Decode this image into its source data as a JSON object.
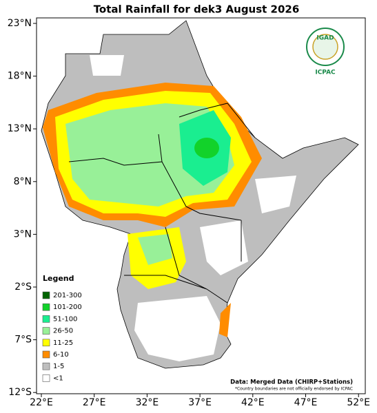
{
  "map": {
    "title": "Total Rainfall for dek3 August 2026",
    "lat_labels": [
      "23°N",
      "18°N",
      "13°N",
      "8°N",
      "3°N",
      "2°S",
      "7°S",
      "12°S"
    ],
    "lon_labels": [
      "22°E",
      "27°E",
      "32°E",
      "37°E",
      "42°E",
      "47°E",
      "52°E"
    ],
    "legend": {
      "title": "Legend",
      "items": [
        {
          "label": "201-300",
          "color": "#006400"
        },
        {
          "label": "101-200",
          "color": "#12d22a"
        },
        {
          "label": "51-100",
          "color": "#1aee90"
        },
        {
          "label": "26-50",
          "color": "#98f098"
        },
        {
          "label": "11-25",
          "color": "#ffff00"
        },
        {
          "label": "6-10",
          "color": "#ff8c00"
        },
        {
          "label": "1-5",
          "color": "#bebebe"
        },
        {
          "label": "<1",
          "color": "#ffffff"
        }
      ]
    },
    "logo": {
      "top": "IGAD",
      "bottom": "ICPAC"
    },
    "credit": "Data: Merged Data (CHIRP+Stations)",
    "disclaimer": "*Country boundaries are not officially endorsed by ICPAC"
  }
}
